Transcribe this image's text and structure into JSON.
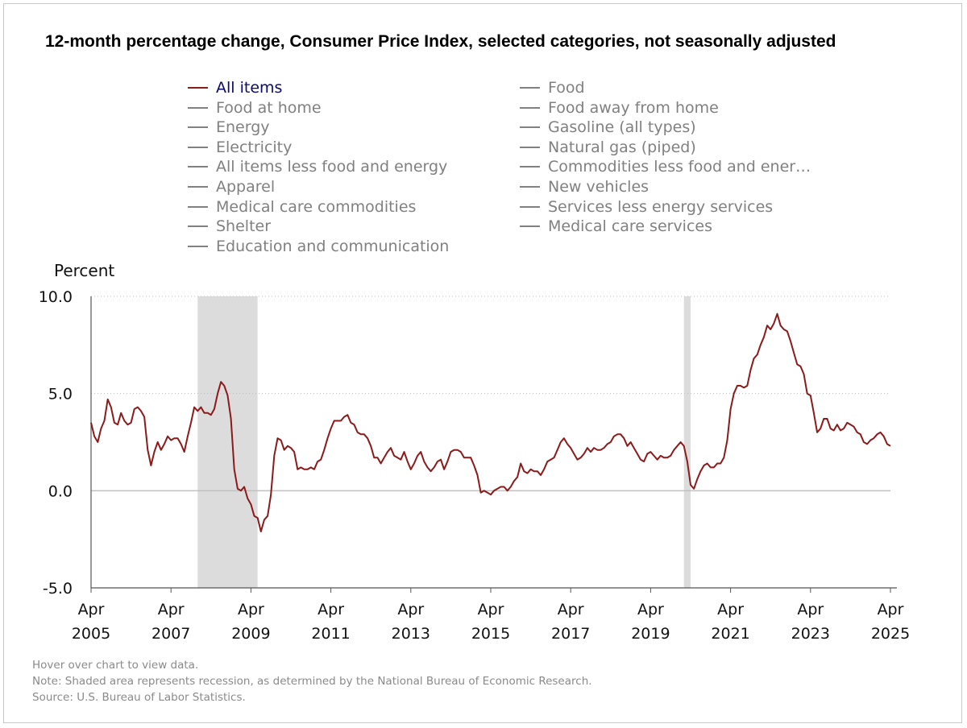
{
  "title": "12-month percentage change, Consumer Price Index, selected categories, not seasonally adjusted",
  "legend": {
    "left": [
      "All items",
      "Food at home",
      "Energy",
      "Electricity",
      "All items less food and energy",
      "Apparel",
      "Medical care commodities",
      "Shelter",
      "Education and communication"
    ],
    "right": [
      "Food",
      "Food away from home",
      "Gasoline (all types)",
      "Natural gas (piped)",
      "Commodities less food and ener…",
      "New vehicles",
      "Services less energy services",
      "Medical care services"
    ],
    "active": "All items"
  },
  "footer": {
    "hover": "Hover over chart to view data.",
    "note": "Note: Shaded area represents recession, as determined by the National Bureau of Economic Research.",
    "source": "Source: U.S. Bureau of Labor Statistics."
  },
  "colors": {
    "series": "#8b1a1a",
    "recession": "#dcdcdc",
    "active_legend_text": "#0a0a6a",
    "inactive_legend": "#808080"
  },
  "chart_data": {
    "type": "line",
    "ylabel": "Percent",
    "ylim": [
      -5,
      10
    ],
    "yticks": [
      "10.0",
      "5.0",
      "0.0",
      "-5.0"
    ],
    "ytick_values": [
      10,
      5,
      0,
      -5
    ],
    "grid": "horizontal dotted",
    "x_start": "2005-04",
    "x_end": "2025-04",
    "xticks": [
      {
        "month": "Apr",
        "year": "2005"
      },
      {
        "month": "Apr",
        "year": "2007"
      },
      {
        "month": "Apr",
        "year": "2009"
      },
      {
        "month": "Apr",
        "year": "2011"
      },
      {
        "month": "Apr",
        "year": "2013"
      },
      {
        "month": "Apr",
        "year": "2015"
      },
      {
        "month": "Apr",
        "year": "2017"
      },
      {
        "month": "Apr",
        "year": "2019"
      },
      {
        "month": "Apr",
        "year": "2021"
      },
      {
        "month": "Apr",
        "year": "2023"
      },
      {
        "month": "Apr",
        "year": "2025"
      }
    ],
    "recessions": [
      [
        "2007-12",
        "2009-06"
      ],
      [
        "2020-02",
        "2020-04"
      ]
    ],
    "series": [
      {
        "name": "All items",
        "frequency": "monthly",
        "values": [
          3.5,
          2.8,
          2.5,
          3.2,
          3.6,
          4.7,
          4.3,
          3.5,
          3.4,
          4.0,
          3.6,
          3.4,
          3.5,
          4.2,
          4.3,
          4.1,
          3.8,
          2.1,
          1.3,
          2.0,
          2.5,
          2.1,
          2.4,
          2.8,
          2.6,
          2.7,
          2.7,
          2.4,
          2.0,
          2.8,
          3.5,
          4.3,
          4.1,
          4.3,
          4.0,
          4.0,
          3.9,
          4.2,
          5.0,
          5.6,
          5.4,
          4.9,
          3.7,
          1.1,
          0.1,
          0.0,
          0.2,
          -0.4,
          -0.7,
          -1.3,
          -1.4,
          -2.1,
          -1.5,
          -1.3,
          -0.2,
          1.8,
          2.7,
          2.6,
          2.1,
          2.3,
          2.2,
          2.0,
          1.1,
          1.2,
          1.1,
          1.1,
          1.2,
          1.1,
          1.5,
          1.6,
          2.1,
          2.7,
          3.2,
          3.6,
          3.6,
          3.6,
          3.8,
          3.9,
          3.5,
          3.4,
          3.0,
          2.9,
          2.9,
          2.7,
          2.3,
          1.7,
          1.7,
          1.4,
          1.7,
          2.0,
          2.2,
          1.8,
          1.7,
          1.6,
          2.0,
          1.5,
          1.1,
          1.4,
          1.8,
          2.0,
          1.5,
          1.2,
          1.0,
          1.2,
          1.5,
          1.6,
          1.1,
          1.5,
          2.0,
          2.1,
          2.1,
          2.0,
          1.7,
          1.7,
          1.7,
          1.3,
          0.8,
          -0.1,
          0.0,
          -0.1,
          -0.2,
          0.0,
          0.1,
          0.2,
          0.2,
          0.0,
          0.2,
          0.5,
          0.7,
          1.4,
          1.0,
          0.9,
          1.1,
          1.0,
          1.0,
          0.8,
          1.1,
          1.5,
          1.6,
          1.7,
          2.1,
          2.5,
          2.7,
          2.4,
          2.2,
          1.9,
          1.6,
          1.7,
          1.9,
          2.2,
          2.0,
          2.2,
          2.1,
          2.1,
          2.2,
          2.4,
          2.5,
          2.8,
          2.9,
          2.9,
          2.7,
          2.3,
          2.5,
          2.2,
          1.9,
          1.6,
          1.5,
          1.9,
          2.0,
          1.8,
          1.6,
          1.8,
          1.7,
          1.7,
          1.8,
          2.1,
          2.3,
          2.5,
          2.3,
          1.5,
          0.3,
          0.1,
          0.6,
          1.0,
          1.3,
          1.4,
          1.2,
          1.2,
          1.4,
          1.4,
          1.7,
          2.6,
          4.2,
          5.0,
          5.4,
          5.4,
          5.3,
          5.4,
          6.2,
          6.8,
          7.0,
          7.5,
          7.9,
          8.5,
          8.3,
          8.6,
          9.1,
          8.5,
          8.3,
          8.2,
          7.7,
          7.1,
          6.5,
          6.4,
          6.0,
          5.0,
          4.9,
          4.0,
          3.0,
          3.2,
          3.7,
          3.7,
          3.2,
          3.1,
          3.4,
          3.1,
          3.2,
          3.5,
          3.4,
          3.3,
          3.0,
          2.9,
          2.5,
          2.4,
          2.6,
          2.7,
          2.9,
          3.0,
          2.8,
          2.4,
          2.3
        ]
      }
    ]
  }
}
